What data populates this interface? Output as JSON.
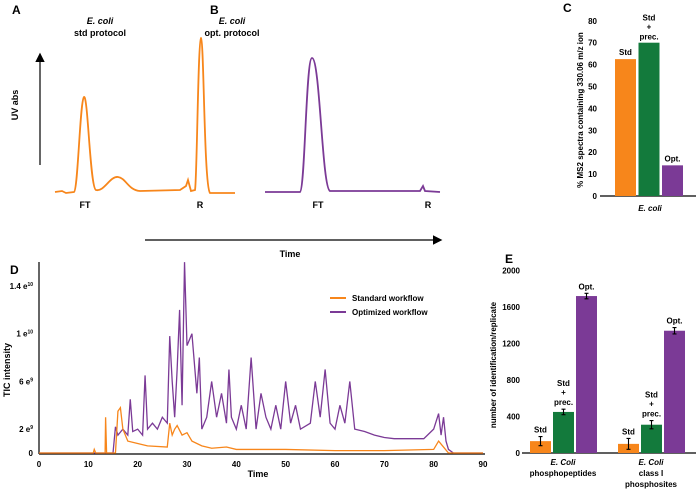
{
  "colors": {
    "std": "#f7861b",
    "prec": "#137a3c",
    "opt": "#7b3a96"
  },
  "chart_data": [
    {
      "panel": "A",
      "type": "line",
      "title_italic": "E. coli",
      "title": "std protocol",
      "ylabel": "UV abs",
      "xlabel": "Time",
      "peak_labels": [
        "FT",
        "R"
      ]
    },
    {
      "panel": "B",
      "type": "line",
      "title_italic": "E. coli",
      "title": "opt. protocol",
      "peak_labels": [
        "FT",
        "R"
      ]
    },
    {
      "panel": "C",
      "type": "bar",
      "ylabel": "% MS2 spectra containing 330.06 m/z ion",
      "category": "E. coli",
      "ylim": [
        0,
        80
      ],
      "yticks": [
        0,
        10,
        20,
        30,
        40,
        50,
        60,
        70,
        80
      ],
      "bars": [
        {
          "label": "Std",
          "label2": "",
          "value": 62.5
        },
        {
          "label": "Std",
          "label2": "prec.",
          "value": 70
        },
        {
          "label": "Opt.",
          "label2": "",
          "value": 14
        }
      ]
    },
    {
      "panel": "D",
      "type": "line",
      "xlabel": "Time",
      "ylabel": "TIC intensity",
      "xlim": [
        0,
        90
      ],
      "xticks": [
        0,
        10,
        20,
        30,
        40,
        50,
        60,
        70,
        80,
        90
      ],
      "ylim_e9": [
        0,
        16
      ],
      "yticks": [
        {
          "value": 0,
          "base": "0",
          "exp": ""
        },
        {
          "value": 2,
          "base": "2 e",
          "exp": "9"
        },
        {
          "value": 6,
          "base": "6 e",
          "exp": "9"
        },
        {
          "value": 10,
          "base": "1 e",
          "exp": "10"
        },
        {
          "value": 14,
          "base": "1.4 e",
          "exp": "10"
        }
      ],
      "series": [
        {
          "name": "Standard workflow",
          "color_key": "std",
          "x": [
            0,
            11,
            11.2,
            11.5,
            13.4,
            13.5,
            13.7,
            15.5,
            16,
            16.5,
            17,
            18,
            20,
            22,
            26,
            26.5,
            27,
            27.5,
            28,
            29,
            30,
            31,
            33,
            35,
            38,
            40,
            50,
            60,
            70,
            80,
            81,
            82,
            83,
            90
          ],
          "y": [
            0,
            0,
            0.3,
            0,
            0,
            3,
            0,
            0,
            3.5,
            3.8,
            2,
            1,
            0.8,
            0.6,
            0.5,
            2.5,
            1.5,
            2,
            2.3,
            1.5,
            1.7,
            1,
            0.6,
            0.4,
            0.5,
            0.3,
            0.3,
            0.2,
            0.2,
            0.3,
            1,
            0.5,
            0,
            0
          ]
        },
        {
          "name": "Optimized workflow",
          "color_key": "opt",
          "x": [
            0,
            15,
            15.5,
            16,
            17,
            18,
            18.5,
            19,
            20,
            21,
            21.5,
            22,
            23,
            24,
            25,
            26,
            26.5,
            27,
            27.5,
            28,
            28.5,
            29,
            29.5,
            30,
            31,
            32,
            32.5,
            33,
            34,
            35,
            36,
            37,
            38,
            38.5,
            39,
            40,
            41,
            42,
            43,
            44,
            45,
            46,
            47,
            48,
            49,
            50,
            51,
            52,
            53,
            55,
            56,
            57,
            58,
            59,
            60,
            61,
            62,
            63,
            64,
            66,
            68,
            70,
            72,
            75,
            78,
            80,
            81,
            81.5,
            82,
            82.5,
            83,
            84,
            90
          ],
          "y": [
            0,
            0,
            2.2,
            1.5,
            2,
            1.5,
            4.5,
            1.8,
            2,
            1.5,
            6.5,
            2,
            2.5,
            2,
            3,
            2.5,
            9.8,
            6,
            3,
            7,
            12,
            4,
            16,
            9,
            10,
            5,
            8,
            2,
            3,
            6,
            3,
            5,
            2.5,
            7,
            3,
            2,
            4,
            2,
            8,
            2,
            5,
            3,
            2,
            4,
            2,
            6,
            2.5,
            4,
            2,
            2.5,
            6,
            3,
            7,
            2.5,
            2,
            4,
            2.5,
            6,
            2,
            1.8,
            1.5,
            1.3,
            1.2,
            1.2,
            1.2,
            2,
            3.3,
            1.5,
            3,
            1,
            0.3,
            0,
            0
          ]
        }
      ]
    },
    {
      "panel": "E",
      "type": "bar",
      "ylabel": "number of identification/replicate",
      "ylim": [
        0,
        2000
      ],
      "yticks": [
        0,
        400,
        800,
        1200,
        1600,
        2000
      ],
      "groups": [
        {
          "label_italic": "E. Coli",
          "label": "phosphopeptides",
          "label3": "",
          "bars": [
            {
              "label": "Std",
              "label2": "",
              "value": 130,
              "err": 50
            },
            {
              "label": "Std",
              "label2": "prec.",
              "value": 450,
              "err": 30
            },
            {
              "label": "Opt.",
              "label2": "",
              "value": 1720,
              "err": 30
            }
          ]
        },
        {
          "label_italic": "E. Coli",
          "label": "class I",
          "label3": "phosphosites",
          "bars": [
            {
              "label": "Std",
              "label2": "",
              "value": 100,
              "err": 60
            },
            {
              "label": "Std",
              "label2": "prec.",
              "value": 310,
              "err": 45
            },
            {
              "label": "Opt.",
              "label2": "",
              "value": 1340,
              "err": 35
            }
          ]
        }
      ]
    }
  ]
}
